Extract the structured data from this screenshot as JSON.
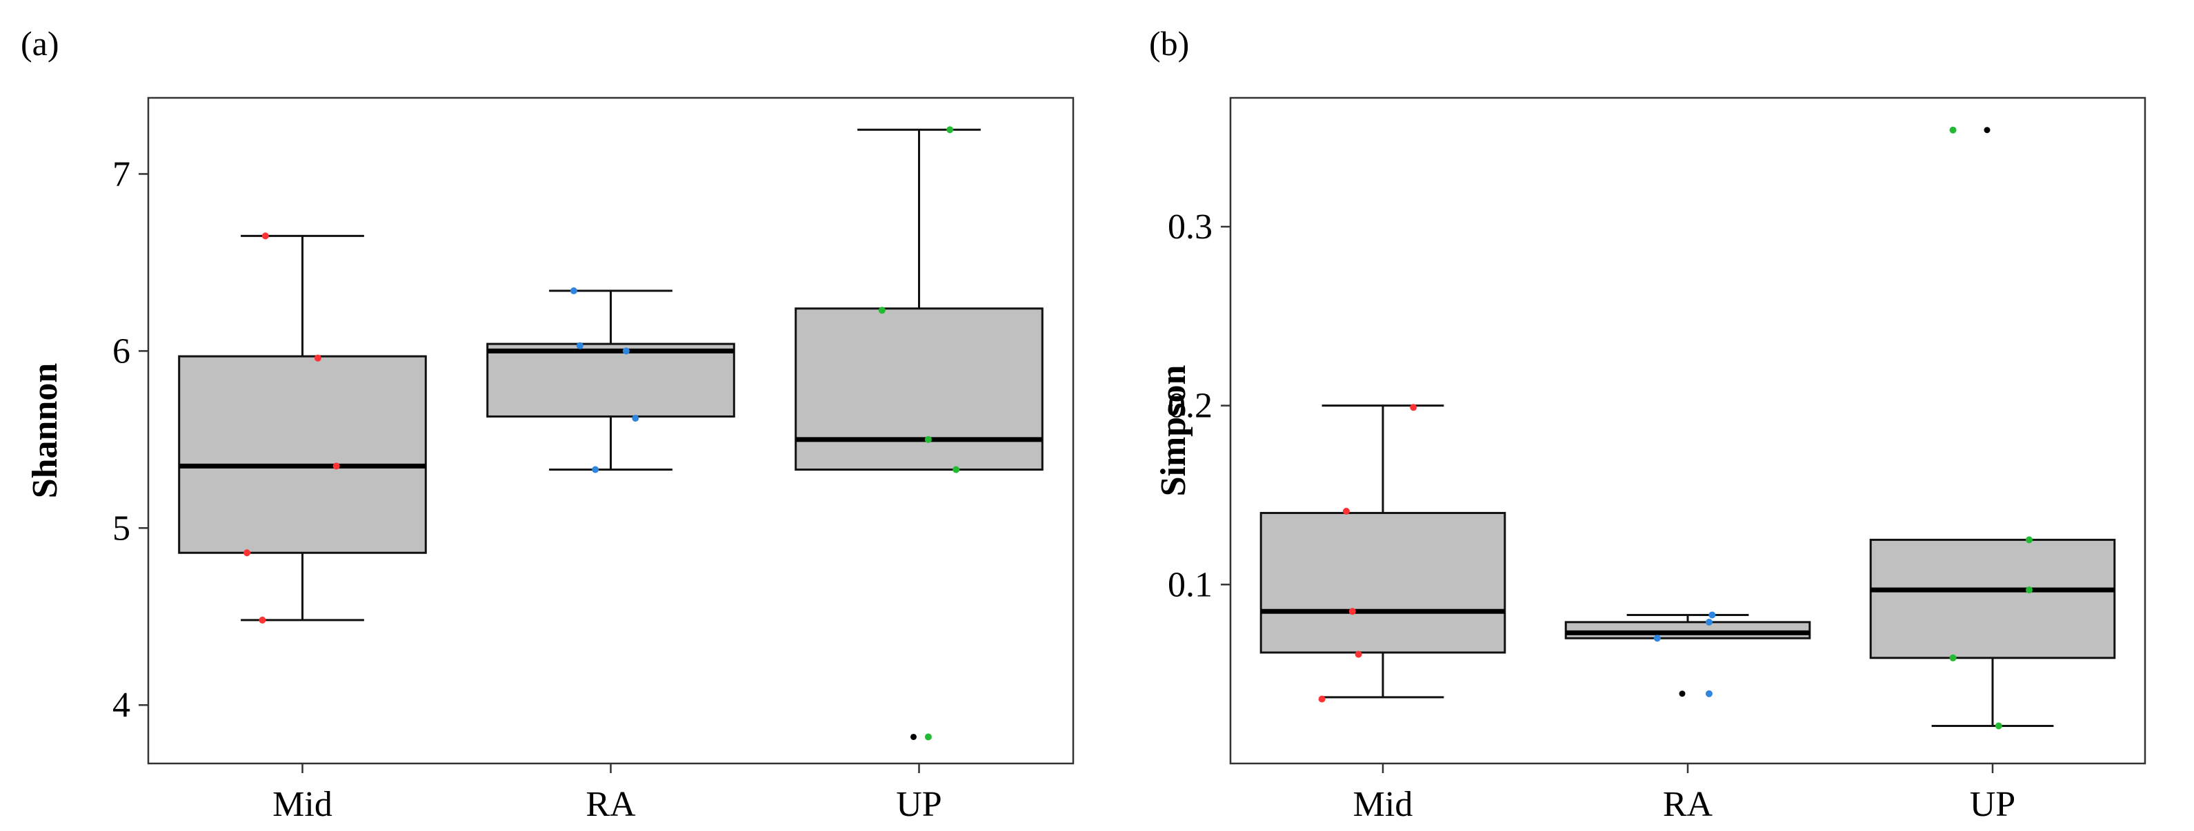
{
  "chart_data": [
    {
      "type": "boxplot",
      "panel_label": "(a)",
      "title": "",
      "xlabel": "",
      "ylabel": "Shannon",
      "categories": [
        "Mid",
        "RA",
        "UP"
      ],
      "yticks": [
        "4",
        "5",
        "6",
        "7"
      ],
      "ylim": [
        3.67,
        7.43
      ],
      "grid": false,
      "legend": "none",
      "colors": {
        "Mid": "#ff3333",
        "RA": "#2e86de",
        "UP": "#22bb33",
        "box_fill": "#c0c0c0",
        "outlier": "#000000"
      },
      "boxes": [
        {
          "category": "Mid",
          "min": 4.48,
          "q1": 4.86,
          "median": 5.35,
          "q3": 5.97,
          "max": 6.65,
          "outliers": []
        },
        {
          "category": "RA",
          "min": 5.33,
          "q1": 5.63,
          "median": 6.0,
          "q3": 6.04,
          "max": 6.34,
          "outliers": []
        },
        {
          "category": "UP",
          "min": 5.33,
          "q1": 5.33,
          "median": 5.5,
          "q3": 6.24,
          "max": 7.25,
          "outliers": [
            3.82
          ]
        }
      ],
      "points": [
        {
          "category": "Mid",
          "jitter": -0.12,
          "y": 6.65
        },
        {
          "category": "Mid",
          "jitter": 0.05,
          "y": 5.96
        },
        {
          "category": "Mid",
          "jitter": 0.11,
          "y": 5.35
        },
        {
          "category": "Mid",
          "jitter": -0.18,
          "y": 4.86
        },
        {
          "category": "Mid",
          "jitter": -0.13,
          "y": 4.48
        },
        {
          "category": "RA",
          "jitter": -0.12,
          "y": 6.34
        },
        {
          "category": "RA",
          "jitter": -0.1,
          "y": 6.03
        },
        {
          "category": "RA",
          "jitter": 0.05,
          "y": 6.0
        },
        {
          "category": "RA",
          "jitter": 0.08,
          "y": 5.62
        },
        {
          "category": "RA",
          "jitter": -0.05,
          "y": 5.33
        },
        {
          "category": "UP",
          "jitter": 0.1,
          "y": 7.25
        },
        {
          "category": "UP",
          "jitter": -0.12,
          "y": 6.23
        },
        {
          "category": "UP",
          "jitter": 0.03,
          "y": 5.5
        },
        {
          "category": "UP",
          "jitter": 0.12,
          "y": 5.33
        },
        {
          "category": "UP",
          "jitter": 0.03,
          "y": 3.82
        }
      ]
    },
    {
      "type": "boxplot",
      "panel_label": "(b)",
      "title": "",
      "xlabel": "",
      "ylabel": "Simpson",
      "categories": [
        "Mid",
        "RA",
        "UP"
      ],
      "yticks": [
        "0.1",
        "0.2",
        "0.3"
      ],
      "ylim": [
        0.0,
        0.372
      ],
      "grid": false,
      "legend": "none",
      "colors": {
        "Mid": "#ff3333",
        "RA": "#2e86de",
        "UP": "#22bb33",
        "box_fill": "#c0c0c0",
        "outlier": "#000000"
      },
      "boxes": [
        {
          "category": "Mid",
          "min": 0.037,
          "q1": 0.062,
          "median": 0.085,
          "q3": 0.14,
          "max": 0.2,
          "outliers": []
        },
        {
          "category": "RA",
          "min": 0.07,
          "q1": 0.07,
          "median": 0.073,
          "q3": 0.079,
          "max": 0.083,
          "outliers": [
            0.039
          ]
        },
        {
          "category": "UP",
          "min": 0.021,
          "q1": 0.059,
          "median": 0.097,
          "q3": 0.125,
          "max": 0.125,
          "outliers": [
            0.354
          ]
        }
      ],
      "points": [
        {
          "category": "Mid",
          "jitter": 0.1,
          "y": 0.199
        },
        {
          "category": "Mid",
          "jitter": -0.12,
          "y": 0.141
        },
        {
          "category": "Mid",
          "jitter": -0.1,
          "y": 0.085
        },
        {
          "category": "Mid",
          "jitter": -0.08,
          "y": 0.061
        },
        {
          "category": "Mid",
          "jitter": -0.2,
          "y": 0.036
        },
        {
          "category": "RA",
          "jitter": 0.08,
          "y": 0.083
        },
        {
          "category": "RA",
          "jitter": 0.07,
          "y": 0.079
        },
        {
          "category": "RA",
          "jitter": -0.1,
          "y": 0.07
        },
        {
          "category": "RA",
          "jitter": 0.07,
          "y": 0.039
        },
        {
          "category": "UP",
          "jitter": -0.13,
          "y": 0.354
        },
        {
          "category": "UP",
          "jitter": 0.12,
          "y": 0.125
        },
        {
          "category": "UP",
          "jitter": 0.12,
          "y": 0.097
        },
        {
          "category": "UP",
          "jitter": -0.13,
          "y": 0.059
        },
        {
          "category": "UP",
          "jitter": 0.02,
          "y": 0.021
        }
      ]
    }
  ]
}
